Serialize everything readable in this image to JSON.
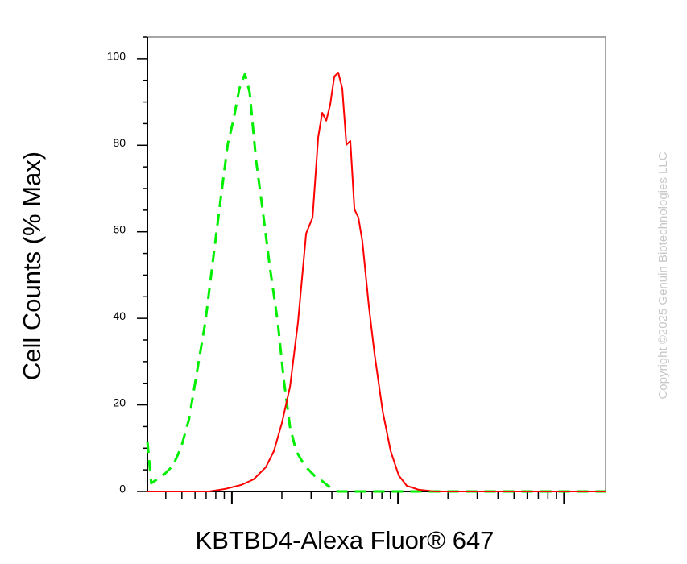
{
  "chart_data": {
    "type": "line",
    "y_label": "Cell Counts (% Max)",
    "x_label": "KBTBD4-Alexa Fluor® 647",
    "watermark": "Copyright ©2025 Genuin Biotechnologies LLC",
    "xscale": "log",
    "xlim": [
      31,
      17800
    ],
    "xticks": [
      100,
      1000,
      10000
    ],
    "xminorticks": [
      40,
      50,
      60,
      70,
      80,
      90,
      200,
      300,
      400,
      500,
      600,
      700,
      800,
      900,
      2000,
      3000,
      4000,
      5000,
      6000,
      7000,
      8000,
      9000
    ],
    "ylim": [
      0,
      105
    ],
    "yticks": [
      0,
      20,
      40,
      60,
      80,
      100
    ],
    "yminorticks": [
      5,
      10,
      15,
      25,
      30,
      35,
      45,
      50,
      55,
      65,
      70,
      75,
      85,
      90,
      95,
      105
    ],
    "series": [
      {
        "color": "#00ee00",
        "dash": true,
        "x": [
          31,
          32.7,
          35.4,
          39.5,
          44.2,
          49.5,
          55.3,
          61.8,
          69.2,
          77.3,
          86.5,
          94.6,
          102,
          111,
          120,
          128,
          140,
          153,
          169,
          189,
          205,
          224,
          244,
          274,
          313,
          350,
          391,
          437,
          17800
        ],
        "values": [
          11.5,
          1.9,
          2.8,
          4.1,
          6,
          10.2,
          16.8,
          27.9,
          39.1,
          54,
          68.9,
          80.4,
          85.7,
          93.1,
          96.5,
          92.2,
          76.4,
          65.2,
          52.1,
          39.1,
          26.1,
          14.9,
          9.3,
          6,
          3.7,
          2.4,
          0.9,
          0,
          0
        ]
      },
      {
        "color": "#ff0000",
        "dash": false,
        "x": [
          31,
          73.1,
          91.4,
          114,
          135,
          160,
          179,
          200,
          224,
          250,
          280,
          306,
          331,
          350,
          370,
          391,
          414,
          437,
          462,
          489,
          517,
          547,
          578,
          611,
          668,
          723,
          809,
          904,
          1011,
          1130,
          1337,
          1671,
          17800
        ],
        "values": [
          0,
          0,
          0.6,
          1.5,
          2.8,
          5.6,
          9.3,
          15.8,
          24.2,
          39.1,
          59.6,
          63.3,
          81.9,
          87.5,
          85.7,
          89.4,
          95.9,
          96.8,
          93.1,
          80.1,
          81,
          65.2,
          63.3,
          57.7,
          42.8,
          31.7,
          18.6,
          9.3,
          3.7,
          1.3,
          0.4,
          0,
          0
        ]
      }
    ]
  }
}
